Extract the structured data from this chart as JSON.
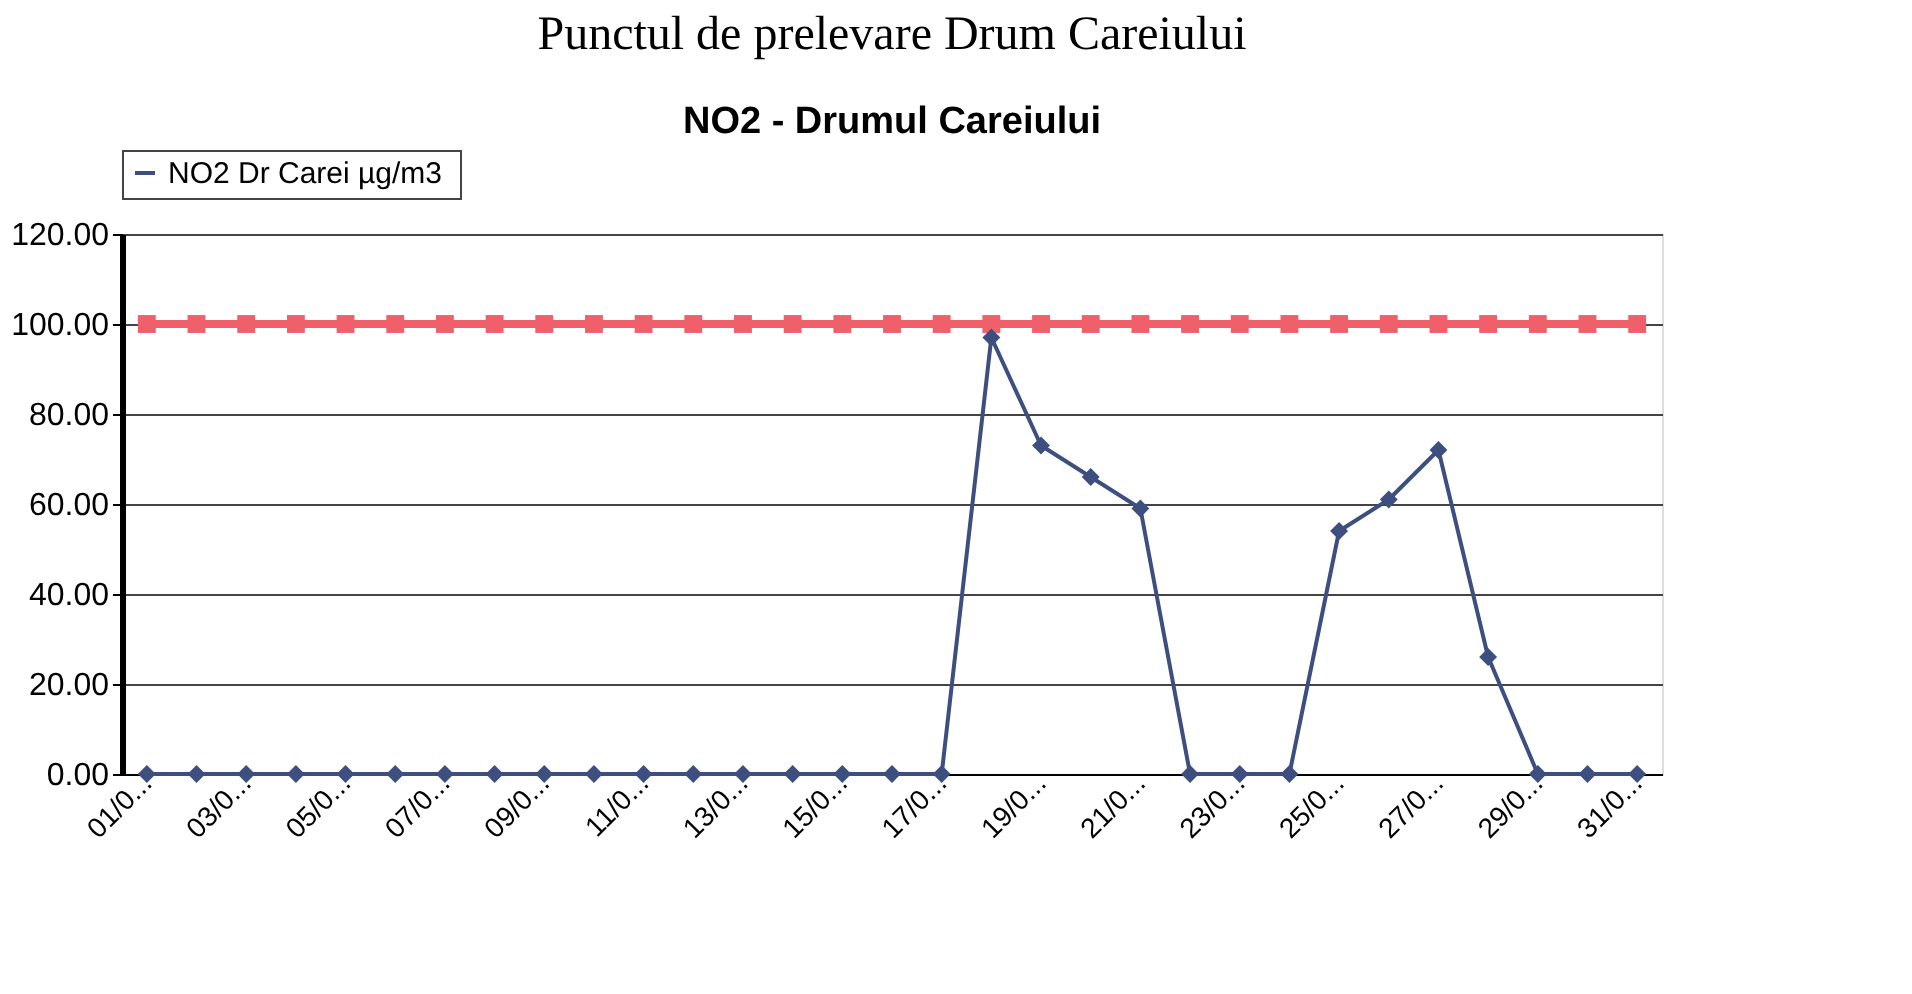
{
  "chart_data": {
    "type": "line",
    "title": "Punctul de prelevare Drum Careiului",
    "subtitle": "NO2 - Drumul Careiului",
    "categories": [
      "01/0...",
      null,
      "03/0...",
      null,
      "05/0...",
      null,
      "07/0...",
      null,
      "09/0...",
      null,
      "11/0...",
      null,
      "13/0...",
      null,
      "15/0...",
      null,
      "17/0...",
      null,
      "19/0...",
      null,
      "21/0...",
      null,
      "23/0...",
      null,
      "25/0...",
      null,
      "27/0...",
      null,
      "29/0...",
      null,
      "31/0..."
    ],
    "series": [
      {
        "name": "NO2 Dr Carei  µg/m3",
        "color": "#3c4f7f",
        "marker": "diamond",
        "values": [
          0,
          0,
          0,
          0,
          0,
          0,
          0,
          0,
          0,
          0,
          0,
          0,
          0,
          0,
          0,
          0,
          0,
          97,
          73,
          66,
          59,
          0,
          0,
          0,
          54,
          61,
          72,
          26,
          0,
          0,
          0
        ]
      },
      {
        "color": "#f0606a",
        "marker": "square",
        "values": [
          100,
          100,
          100,
          100,
          100,
          100,
          100,
          100,
          100,
          100,
          100,
          100,
          100,
          100,
          100,
          100,
          100,
          100,
          100,
          100,
          100,
          100,
          100,
          100,
          100,
          100,
          100,
          100,
          100,
          100,
          100
        ]
      }
    ],
    "ylim": [
      0,
      120
    ],
    "yticks": [
      {
        "value": 0,
        "label": "0.00"
      },
      {
        "value": 20,
        "label": "20.00"
      },
      {
        "value": 40,
        "label": "40.00"
      },
      {
        "value": 60,
        "label": "60.00"
      },
      {
        "value": 80,
        "label": "80.00"
      },
      {
        "value": 100,
        "label": "100.00"
      },
      {
        "value": 120,
        "label": "120.00"
      }
    ],
    "grid": "y",
    "legend": "top",
    "line_style": "solid"
  }
}
